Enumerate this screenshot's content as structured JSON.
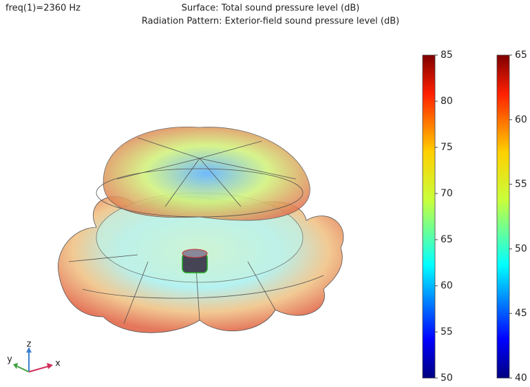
{
  "chart_data": {
    "type": "radiation-pattern",
    "frequency_label": "freq(1)=2360 Hz",
    "title": "Surface: Total sound pressure level (dB)",
    "subtitle": "Radiation Pattern: Exterior-field sound pressure level (dB)",
    "colorbars": [
      {
        "lim": [
          50,
          85
        ],
        "ticks": [
          50,
          55,
          60,
          65,
          70,
          75,
          80,
          85
        ]
      },
      {
        "lim": [
          40,
          65
        ],
        "ticks": [
          40,
          45,
          50,
          55,
          60,
          65
        ]
      }
    ],
    "axes_labels": {
      "x": "x",
      "y": "y",
      "z": "z"
    }
  }
}
